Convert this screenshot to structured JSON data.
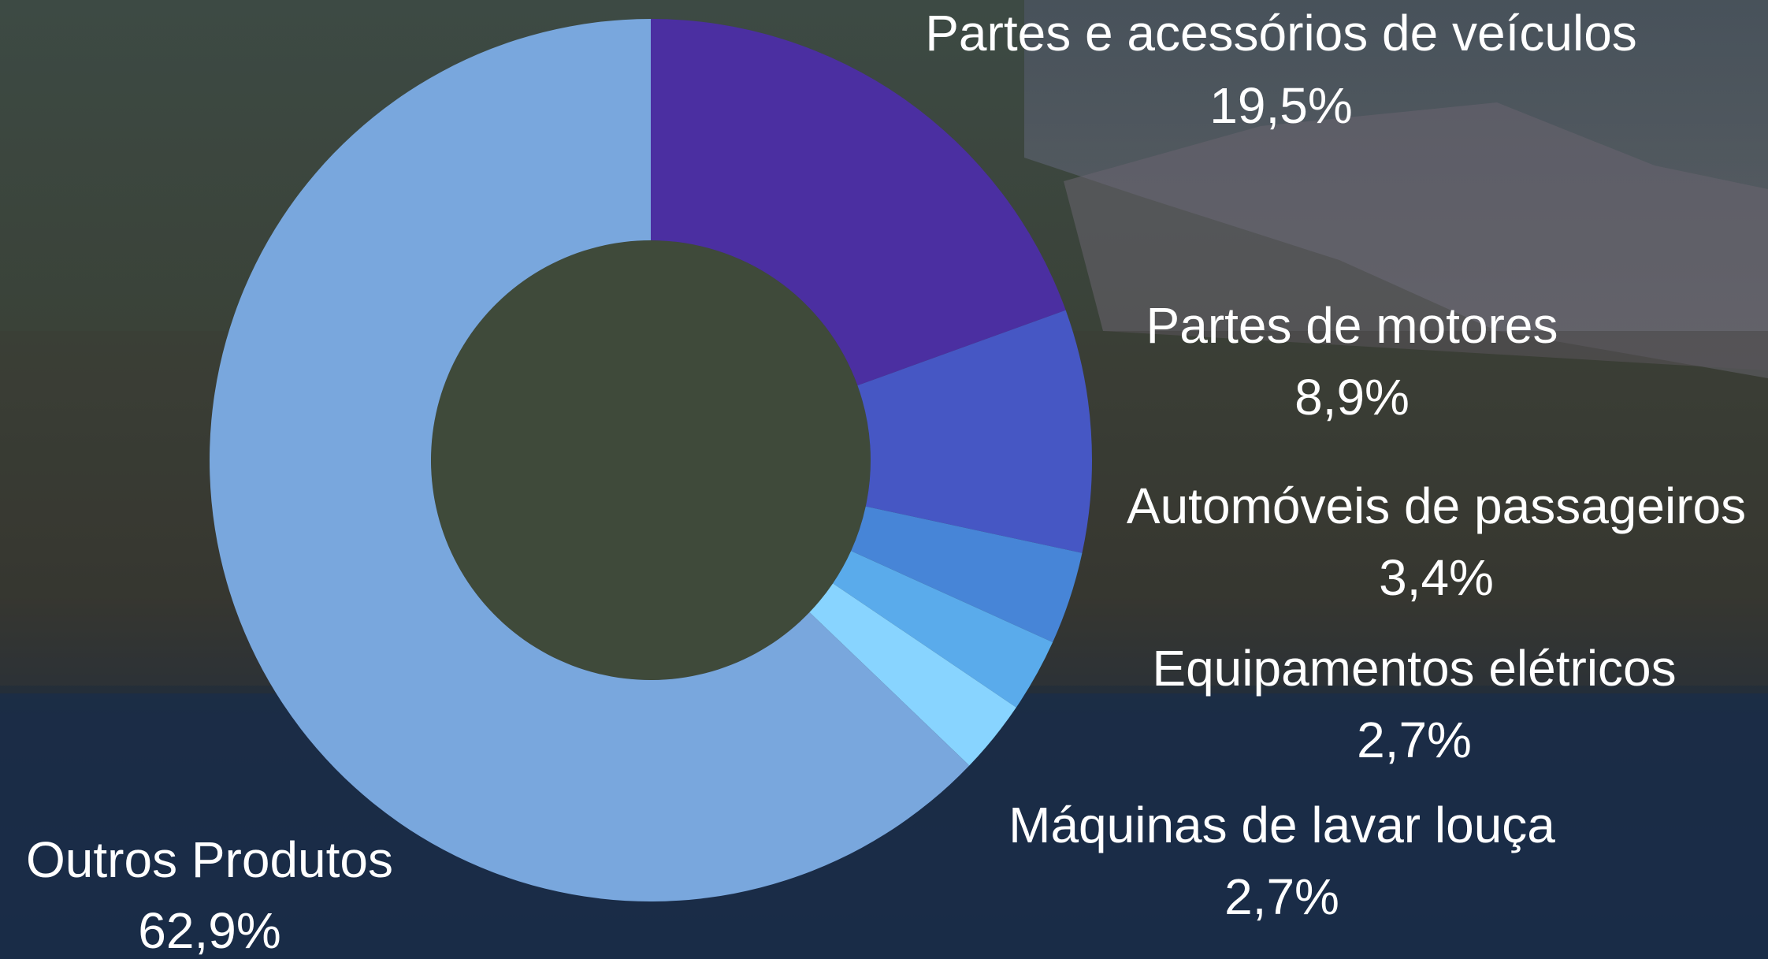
{
  "chart_data": {
    "type": "donut",
    "categories": [
      "Partes e acessórios de veículos",
      "Partes de motores",
      "Automóveis de passageiros",
      "Equipamentos elétricos",
      "Máquinas de lavar louça",
      "Outros Produtos"
    ],
    "values": [
      19.5,
      8.9,
      3.4,
      2.7,
      2.7,
      62.9
    ],
    "value_labels": [
      "19,5%",
      "8,9%",
      "3,4%",
      "2,7%",
      "2,7%",
      "62,9%"
    ],
    "colors": [
      "#4b2fa1",
      "#4657c4",
      "#4785d7",
      "#5aabeb",
      "#88d4ff",
      "#79a7dd"
    ]
  }
}
